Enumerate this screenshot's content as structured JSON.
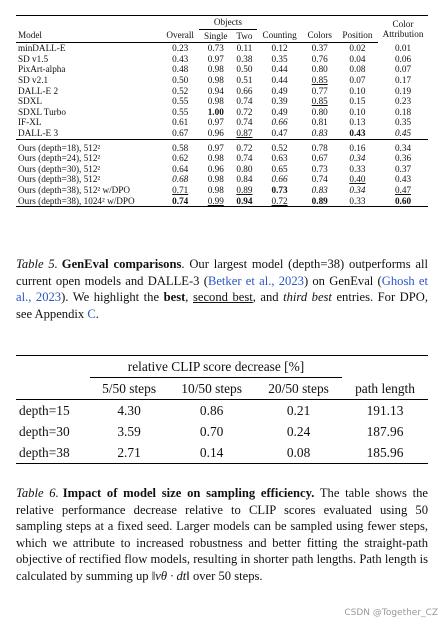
{
  "table5": {
    "group_header": "Objects",
    "columns": [
      "Model",
      "Overall",
      "Single",
      "Two",
      "Counting",
      "Colors",
      "Position",
      "Color Attribution"
    ],
    "baselines": [
      [
        "minDALL-E",
        "0.23",
        "0.73",
        "0.11",
        "0.12",
        "0.37",
        "0.02",
        "0.01"
      ],
      [
        "SD v1.5",
        "0.43",
        "0.97",
        "0.38",
        "0.35",
        "0.76",
        "0.04",
        "0.06"
      ],
      [
        "PixArt-alpha",
        "0.48",
        "0.98",
        "0.50",
        "0.44",
        "0.80",
        "0.08",
        "0.07"
      ],
      [
        "SD v2.1",
        "0.50",
        "0.98",
        "0.51",
        "0.44",
        {
          "text": "0.85",
          "style": "underline"
        },
        "0.07",
        "0.17"
      ],
      [
        "DALL-E 2",
        "0.52",
        "0.94",
        "0.66",
        "0.49",
        "0.77",
        "0.10",
        "0.19"
      ],
      [
        "SDXL",
        "0.55",
        "0.98",
        "0.74",
        "0.39",
        {
          "text": "0.85",
          "style": "underline"
        },
        "0.15",
        "0.23"
      ],
      [
        "SDXL Turbo",
        "0.55",
        {
          "text": "1.00",
          "style": "bold"
        },
        "0.72",
        "0.49",
        "0.80",
        "0.10",
        "0.18"
      ],
      [
        "IF-XL",
        "0.61",
        "0.97",
        "0.74",
        {
          "text": "0.66",
          "style": "italic"
        },
        "0.81",
        "0.13",
        "0.35"
      ],
      [
        "DALL-E 3",
        "0.67",
        "0.96",
        {
          "text": "0.87",
          "style": "underline"
        },
        "0.47",
        {
          "text": "0.83",
          "style": "italic"
        },
        {
          "text": "0.43",
          "style": "bold"
        },
        {
          "text": "0.45",
          "style": "italic"
        }
      ]
    ],
    "ours": [
      [
        "Ours (depth=18), 512²",
        "0.58",
        "0.97",
        "0.72",
        "0.52",
        "0.78",
        "0.16",
        "0.34"
      ],
      [
        "Ours (depth=24), 512²",
        "0.62",
        "0.98",
        "0.74",
        "0.63",
        "0.67",
        {
          "text": "0.34",
          "style": "italic"
        },
        "0.36"
      ],
      [
        "Ours (depth=30), 512²",
        "0.64",
        "0.96",
        "0.80",
        "0.65",
        "0.73",
        "0.33",
        "0.37"
      ],
      [
        "Ours (depth=38), 512²",
        {
          "text": "0.68",
          "style": "italic"
        },
        "0.98",
        "0.84",
        {
          "text": "0.66",
          "style": "italic"
        },
        "0.74",
        {
          "text": "0.40",
          "style": "underline"
        },
        "0.43"
      ],
      [
        "Ours (depth=38), 512² w/DPO",
        {
          "text": "0.71",
          "style": "underline"
        },
        "0.98",
        {
          "text": "0.89",
          "style": "underline"
        },
        {
          "text": "0.73",
          "style": "bold"
        },
        {
          "text": "0.83",
          "style": "italic"
        },
        {
          "text": "0.34",
          "style": "italic"
        },
        {
          "text": "0.47",
          "style": "underline"
        }
      ],
      [
        "Ours (depth=38), 1024² w/DPO",
        {
          "text": "0.74",
          "style": "bold"
        },
        {
          "text": "0.99",
          "style": "underline"
        },
        {
          "text": "0.94",
          "style": "bold"
        },
        {
          "text": "0.72",
          "style": "underline"
        },
        {
          "text": "0.89",
          "style": "bold"
        },
        "0.33",
        {
          "text": "0.60",
          "style": "bold"
        }
      ]
    ],
    "caption": {
      "label": "Table 5.",
      "segments": [
        {
          "text": "GenEval comparisons",
          "style": "bold"
        },
        ". Our largest model (depth=38) outperforms all current open models and DALLE-3 (",
        {
          "text": "Betker et al., 2023",
          "style": "link"
        },
        ") on GenEval (",
        {
          "text": "Ghosh et al., 2023",
          "style": "link"
        },
        "). We highlight the ",
        {
          "text": "best",
          "style": "bold"
        },
        ", ",
        {
          "text": "second best",
          "style": "underline"
        },
        ", and ",
        {
          "text": "third best",
          "style": "italic"
        },
        " entries. For DPO, see Appendix ",
        {
          "text": "C",
          "style": "link"
        },
        "."
      ]
    }
  },
  "table6": {
    "group_header": "relative CLIP score decrease [%]",
    "columns": [
      "5/50 steps",
      "10/50 steps",
      "20/50 steps",
      "path length"
    ],
    "rows": [
      [
        "depth=15",
        "4.30",
        "0.86",
        "0.21",
        "191.13"
      ],
      [
        "depth=30",
        "3.59",
        "0.70",
        "0.24",
        "187.96"
      ],
      [
        "depth=38",
        "2.71",
        "0.14",
        "0.08",
        "185.96"
      ]
    ],
    "caption": {
      "label": "Table 6.",
      "segments": [
        {
          "text": "Impact of model size on sampling efficiency.",
          "style": "bold"
        },
        " The table shows the relative performance decrease relative to CLIP scores evaluated using 50 sampling steps at a fixed seed. Larger models can be sampled using fewer steps, which we attribute to increased robustness and better fitting the straight-path objective of rectified flow models, resulting in shorter path lengths. Path length is calculated by summing up ",
        {
          "text": "‖vθ · dt‖",
          "style": "italic"
        },
        " over 50 steps."
      ]
    }
  },
  "watermark": "CSDN @Together_CZ"
}
